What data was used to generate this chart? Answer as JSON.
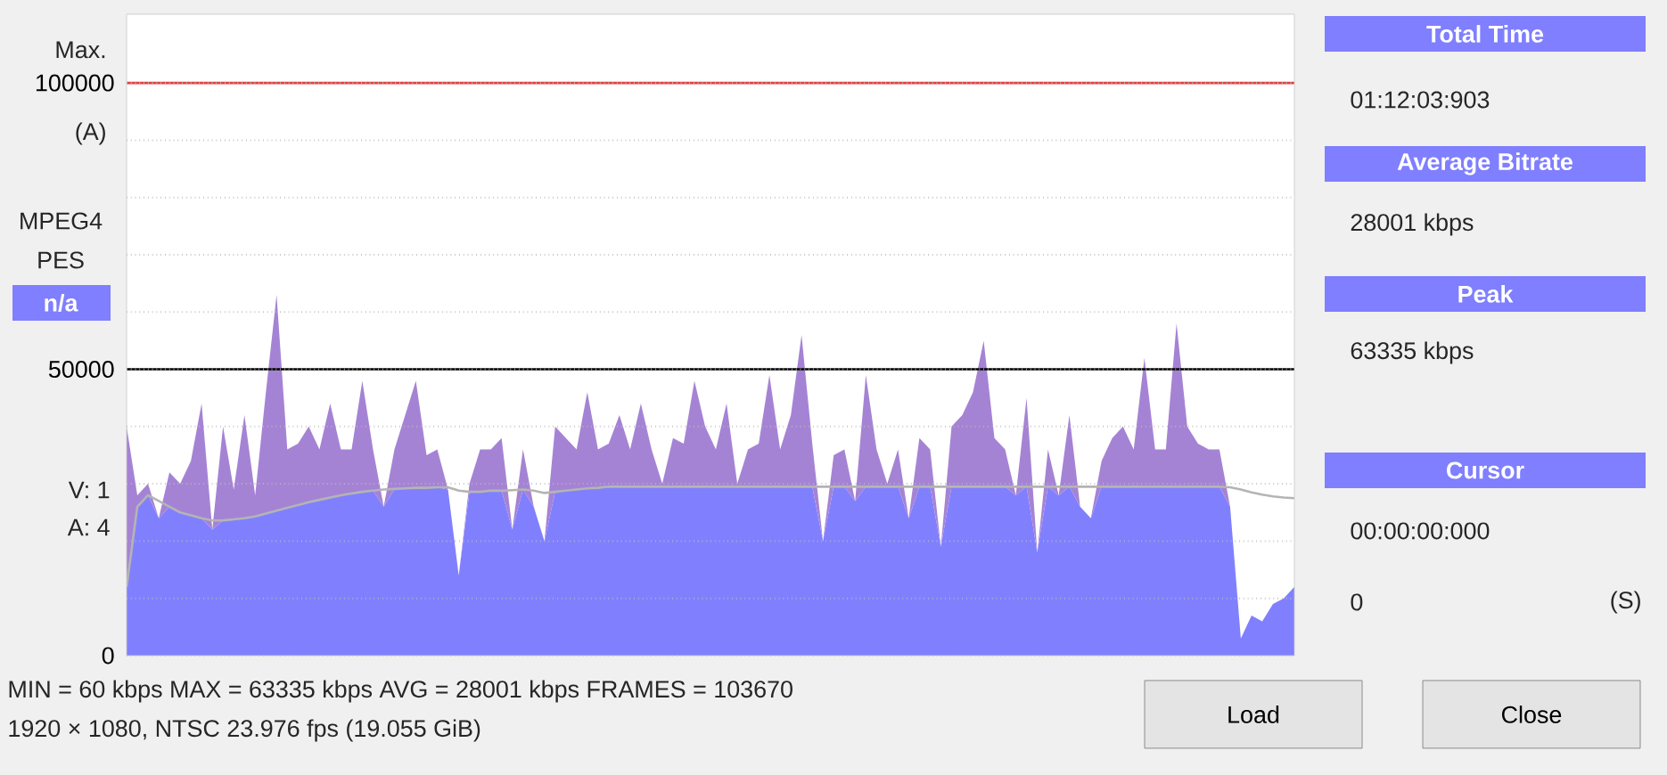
{
  "chart_data": {
    "type": "area",
    "stacked": true,
    "categories": [
      null,
      null,
      null,
      null,
      null,
      null,
      null,
      null,
      null,
      null,
      null,
      null,
      null,
      null,
      null,
      null,
      null,
      null,
      null,
      null,
      null,
      null,
      null,
      null,
      null,
      null,
      null,
      null,
      null,
      null,
      null,
      null,
      null,
      null,
      null,
      null,
      null,
      null,
      null,
      null,
      null,
      null,
      null,
      null,
      null,
      null,
      null,
      null,
      null,
      null,
      null,
      null,
      null,
      null,
      null,
      null,
      null,
      null,
      null,
      null,
      null,
      null,
      null,
      null,
      null,
      null,
      null,
      null,
      null,
      null,
      null,
      null,
      null,
      null,
      null,
      null,
      null,
      null,
      null,
      null,
      null,
      null,
      null,
      null,
      null,
      null,
      null,
      null,
      null,
      null,
      null,
      null,
      null,
      null,
      null,
      null,
      null,
      null,
      null,
      null,
      null,
      null,
      null,
      null,
      null,
      null,
      null,
      null,
      null,
      null
    ],
    "series": [
      {
        "color": "#8080ff",
        "values": [
          12000,
          26000,
          28000,
          24000,
          26000,
          25000,
          24500,
          24000,
          22000,
          23600,
          23800,
          24000,
          24300,
          24800,
          25300,
          25800,
          26300,
          26800,
          27200,
          27600,
          28000,
          28300,
          28600,
          28800,
          26000,
          29100,
          29200,
          29300,
          29300,
          29400,
          29000,
          14000,
          28600,
          28600,
          28800,
          28800,
          22000,
          29000,
          26000,
          20000,
          28600,
          28800,
          29000,
          29200,
          29300,
          29500,
          29500,
          29500,
          29500,
          29500,
          29500,
          29500,
          29500,
          29500,
          29500,
          29500,
          29500,
          29500,
          29500,
          29500,
          29500,
          29500,
          29500,
          29500,
          29500,
          20000,
          29500,
          29500,
          27000,
          29500,
          29500,
          29500,
          29500,
          24000,
          29500,
          29500,
          19000,
          29500,
          29500,
          29500,
          29500,
          29500,
          29500,
          28000,
          29500,
          18000,
          29500,
          28000,
          29500,
          26000,
          24000,
          29500,
          29500,
          29500,
          29500,
          29500,
          29500,
          29500,
          29500,
          29500,
          29500,
          29500,
          29500,
          26000,
          3000,
          7000,
          6000,
          9000,
          10000,
          12000
        ]
      },
      {
        "color": "#a583d4",
        "values": [
          28000,
          2000,
          2000,
          0,
          6000,
          5000,
          9500,
          20000,
          0,
          16400,
          5200,
          18000,
          3700,
          21200,
          37700,
          10200,
          10700,
          13200,
          8800,
          16400,
          8000,
          7700,
          19400,
          7200,
          0,
          6900,
          12800,
          18700,
          5700,
          6600,
          0,
          0,
          1400,
          7400,
          7200,
          9200,
          0,
          7000,
          0,
          0,
          11400,
          9200,
          7000,
          16800,
          6700,
          7500,
          12500,
          6500,
          14500,
          6500,
          500,
          8500,
          7500,
          18500,
          10500,
          6500,
          14500,
          500,
          6500,
          7500,
          19500,
          6500,
          12500,
          26500,
          7500,
          0,
          5500,
          6500,
          0,
          19500,
          6500,
          500,
          6500,
          0,
          8500,
          6500,
          0,
          10500,
          12500,
          16500,
          25500,
          8500,
          6500,
          0,
          15500,
          0,
          6500,
          0,
          12500,
          0,
          0,
          4500,
          8500,
          10500,
          6500,
          22500,
          6500,
          6500,
          28500,
          10500,
          7500,
          6500,
          6500,
          0,
          0,
          0,
          0,
          0,
          0,
          0
        ]
      },
      {
        "type": "line",
        "color": "#b4b4b4",
        "values": [
          12000,
          26000,
          28000,
          27000,
          26000,
          25000,
          24500,
          24000,
          23600,
          23600,
          23800,
          24000,
          24300,
          24800,
          25300,
          25800,
          26300,
          26800,
          27200,
          27600,
          28000,
          28300,
          28600,
          28800,
          29000,
          29100,
          29200,
          29300,
          29300,
          29400,
          29400,
          28800,
          28600,
          28600,
          28800,
          28800,
          28900,
          29000,
          28800,
          28400,
          28600,
          28800,
          29000,
          29200,
          29300,
          29500,
          29500,
          29500,
          29500,
          29500,
          29500,
          29500,
          29500,
          29500,
          29500,
          29500,
          29500,
          29500,
          29500,
          29500,
          29500,
          29500,
          29500,
          29500,
          29500,
          29500,
          29500,
          29500,
          29500,
          29500,
          29500,
          29500,
          29500,
          29500,
          29500,
          29500,
          29500,
          29500,
          29500,
          29500,
          29500,
          29500,
          29500,
          29500,
          29500,
          29500,
          29500,
          29500,
          29500,
          29500,
          29500,
          29500,
          29500,
          29500,
          29500,
          29500,
          29500,
          29500,
          29500,
          29500,
          29500,
          29500,
          29500,
          29400,
          29000,
          28500,
          28100,
          27800,
          27600,
          27500
        ]
      }
    ],
    "ylim": [
      0,
      112000
    ],
    "yticks": [
      0,
      {
        "value": 10000,
        "label": null
      },
      {
        "value": 20000,
        "label": null
      },
      {
        "value": 30000,
        "label": null
      },
      {
        "value": 40000,
        "label": null
      },
      50000,
      {
        "value": 60000,
        "label": null
      },
      {
        "value": 70000,
        "label": null
      },
      {
        "value": 80000,
        "label": null
      },
      {
        "value": 90000,
        "label": null
      },
      100000
    ],
    "grid": "y",
    "ref_lines": [
      {
        "axis": "y",
        "value": 100000,
        "color": "#e04040"
      },
      {
        "axis": "y",
        "value": 50000,
        "color": "#000000"
      }
    ],
    "annotations": [
      "Max.",
      "(A)",
      "MPEG4",
      "PES",
      "n/a",
      "V: 1",
      "A: 4",
      "Total Time",
      "01:12:03:903",
      "Average Bitrate",
      "28001 kbps",
      "Peak",
      "63335 kbps",
      "Cursor",
      "00:00:00:000",
      "0",
      "(S)",
      "MIN = 60 kbps  MAX = 63335 kbps  AVG = 28001 kbps  FRAMES = 103670",
      "1920 × 1080, NTSC 23.976 fps   (19.055 GiB)",
      "Load",
      "Close"
    ]
  }
}
